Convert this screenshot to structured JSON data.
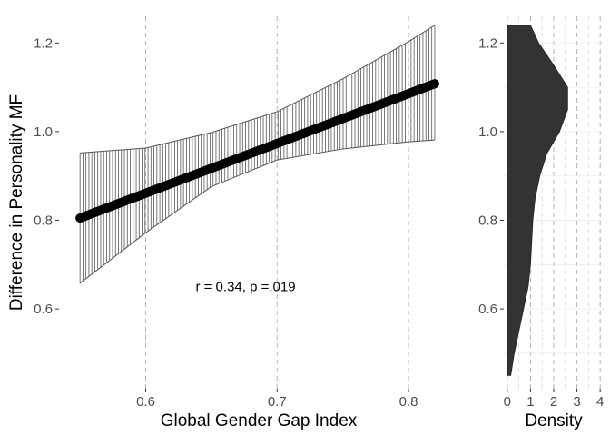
{
  "chart_data": [
    {
      "type": "line",
      "xlabel": "Global Gender Gap Index",
      "ylabel": "Difference in Personality MF",
      "xlim": [
        0.534,
        0.838
      ],
      "ylim": [
        0.42,
        1.26
      ],
      "xticks": [
        0.6,
        0.7,
        0.8
      ],
      "xtick_labels": [
        "0.6",
        "0.7",
        "0.8"
      ],
      "yticks": [
        0.6,
        0.8,
        1.0,
        1.2
      ],
      "ytick_labels": [
        "0.6",
        "0.8",
        "1.0",
        "1.2"
      ],
      "grid": "vertical dashed major lines only",
      "fit_line": {
        "x": [
          0.55,
          0.82
        ],
        "y": [
          0.805,
          1.108
        ]
      },
      "confidence_band": {
        "x": [
          0.55,
          0.6,
          0.65,
          0.7,
          0.75,
          0.8,
          0.82
        ],
        "lower": [
          0.658,
          0.772,
          0.876,
          0.936,
          0.961,
          0.977,
          0.981
        ],
        "upper": [
          0.952,
          0.963,
          0.998,
          1.045,
          1.119,
          1.203,
          1.24
        ]
      },
      "annotation": {
        "text": "r = 0.34, p =.019",
        "x": 0.676,
        "y": 0.65
      }
    },
    {
      "type": "area",
      "orientation": "horizontal",
      "xlabel": "Density",
      "ylabel": "",
      "xlim": [
        -0.15,
        4.15
      ],
      "ylim": [
        0.42,
        1.26
      ],
      "xticks": [
        0,
        1,
        2,
        3,
        4
      ],
      "xtick_labels": [
        "0",
        "1",
        "2",
        "3",
        "4"
      ],
      "yticks": [
        0.6,
        0.8,
        1.0,
        1.2
      ],
      "ytick_labels": [
        "0.6",
        "0.8",
        "1.0",
        "1.2"
      ],
      "grid": "vertical dashed",
      "fill": "#333333",
      "density": {
        "y": [
          0.45,
          0.5,
          0.55,
          0.6,
          0.65,
          0.7,
          0.75,
          0.8,
          0.85,
          0.9,
          0.95,
          1.0,
          1.05,
          1.1,
          1.15,
          1.2,
          1.24
        ],
        "values": [
          0.15,
          0.3,
          0.5,
          0.7,
          0.9,
          1.0,
          1.05,
          1.1,
          1.2,
          1.4,
          1.7,
          2.25,
          2.6,
          2.6,
          2.0,
          1.35,
          1.0
        ]
      }
    }
  ]
}
